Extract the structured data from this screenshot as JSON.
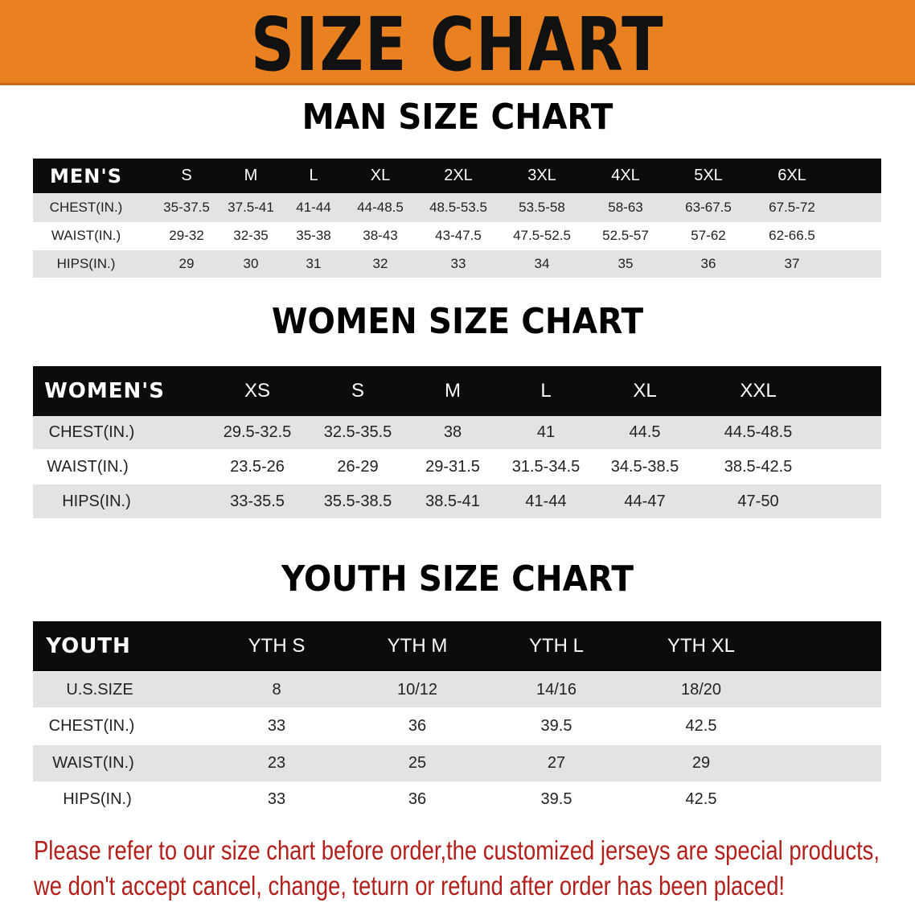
{
  "banner": {
    "title": "SIZE CHART",
    "color": "#ea8120"
  },
  "men": {
    "title": "MAN SIZE CHART",
    "header": [
      "MEN'S",
      "S",
      "M",
      "L",
      "XL",
      "2XL",
      "3XL",
      "4XL",
      "5XL",
      "6XL"
    ],
    "rows": [
      [
        "CHEST(IN.)",
        "35-37.5",
        "37.5-41",
        "41-44",
        "44-48.5",
        "48.5-53.5",
        "53.5-58",
        "58-63",
        "63-67.5",
        "67.5-72"
      ],
      [
        "WAIST(IN.)",
        "29-32",
        "32-35",
        "35-38",
        "38-43",
        "43-47.5",
        "47.5-52.5",
        "52.5-57",
        "57-62",
        "62-66.5"
      ],
      [
        "HIPS(IN.)",
        "29",
        "30",
        "31",
        "32",
        "33",
        "34",
        "35",
        "36",
        "37"
      ]
    ]
  },
  "women": {
    "title": "WOMEN SIZE CHART",
    "header": [
      "WOMEN'S",
      "XS",
      "S",
      "M",
      "L",
      "XL",
      "XXL"
    ],
    "rows": [
      [
        "CHEST(IN.)",
        "29.5-32.5",
        "32.5-35.5",
        "38",
        "41",
        "44.5",
        "44.5-48.5"
      ],
      [
        "WAIST(IN.)",
        "23.5-26",
        "26-29",
        "29-31.5",
        "31.5-34.5",
        "34.5-38.5",
        "38.5-42.5"
      ],
      [
        "HIPS(IN.)",
        "33-35.5",
        "35.5-38.5",
        "38.5-41",
        "41-44",
        "44-47",
        "47-50"
      ]
    ]
  },
  "youth": {
    "title": "YOUTH SIZE CHART",
    "header": [
      "YOUTH",
      "YTH S",
      "YTH M",
      "YTH L",
      "YTH XL"
    ],
    "rows": [
      [
        "U.S.SIZE",
        "8",
        "10/12",
        "14/16",
        "18/20"
      ],
      [
        "CHEST(IN.)",
        "33",
        "36",
        "39.5",
        "42.5"
      ],
      [
        "WAIST(IN.)",
        "23",
        "25",
        "27",
        "29"
      ],
      [
        "HIPS(IN.)",
        "33",
        "36",
        "39.5",
        "42.5"
      ]
    ]
  },
  "notice": {
    "line1": "Please refer to our size chart before order,the customized jerseys are special products,",
    "line2": "we don't accept cancel, change, teturn or refund after order has been placed!",
    "color": "#b3201c"
  }
}
